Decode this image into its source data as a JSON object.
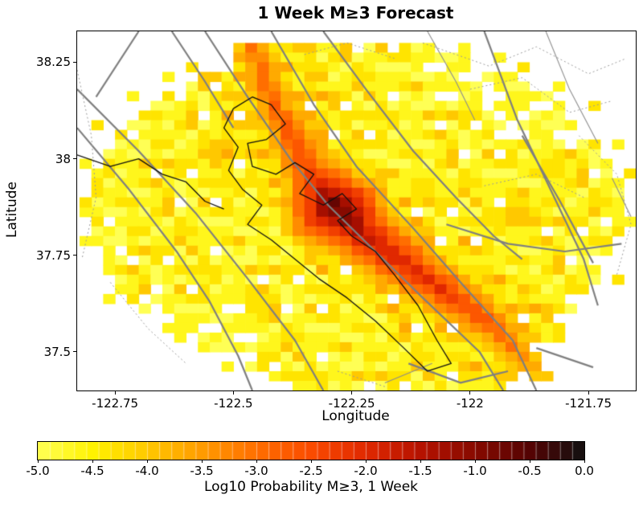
{
  "title": "1 Week M≥3 Forecast",
  "axes": {
    "xlabel": "Longitude",
    "ylabel": "Latitude",
    "x_ticks": [
      "-122.75",
      "-122.5",
      "-122.25",
      "-122",
      "-121.75"
    ],
    "x_tick_values": [
      -122.75,
      -122.5,
      -122.25,
      -122,
      -121.75
    ],
    "y_ticks": [
      "38.25",
      "38",
      "37.75",
      "37.5"
    ],
    "y_tick_values": [
      38.25,
      38,
      37.75,
      37.5
    ],
    "xlim": [
      -122.83,
      -121.65
    ],
    "ylim": [
      37.4,
      38.33
    ]
  },
  "colorbar": {
    "label": "Log10 Probability M≥3, 1 Week",
    "ticks": [
      "-5.0",
      "-4.5",
      "-4.0",
      "-3.5",
      "-3.0",
      "-2.5",
      "-2.0",
      "-1.5",
      "-1.0",
      "-0.5",
      "0.0"
    ],
    "tick_values": [
      -5,
      -4.5,
      -4,
      -3.5,
      -3,
      -2.5,
      -2,
      -1.5,
      -1,
      -0.5,
      0
    ],
    "range": [
      -5,
      0
    ],
    "segments": 45
  },
  "colors": {
    "background": "#ffffff",
    "axis": "#000000",
    "fault_major": "#7f7f7f",
    "fault_minor": "#8c8c8c",
    "fault_dotted": "#9a9a9a",
    "coast": "#101010"
  },
  "chart_data": {
    "type": "heatmap",
    "title": "1 Week M≥3 Forecast",
    "value_label": "Log10 Probability M≥3, 1 Week",
    "value_range": [
      -5,
      0
    ],
    "colormap_stops": [
      [
        -5.0,
        "#FFFF55"
      ],
      [
        -4.5,
        "#FFF200"
      ],
      [
        -4.0,
        "#FFC800"
      ],
      [
        -3.5,
        "#FF9B00"
      ],
      [
        -3.0,
        "#FF6E00"
      ],
      [
        -2.5,
        "#FA4B00"
      ],
      [
        -2.0,
        "#E02800"
      ],
      [
        -1.5,
        "#B51200"
      ],
      [
        -1.0,
        "#870A00"
      ],
      [
        -0.5,
        "#540303"
      ],
      [
        0.0,
        "#111111"
      ]
    ],
    "grid": {
      "lon0": -122.85,
      "dlon": 0.025,
      "ncols": 48,
      "lat0": 38.3,
      "dlat": 0.025,
      "nrows": 36
    },
    "mask_rows": [
      [
        16,
        30
      ],
      [
        14,
        33
      ],
      [
        13,
        35
      ],
      [
        11,
        37
      ],
      [
        9,
        38
      ],
      [
        8,
        40
      ],
      [
        7,
        41
      ],
      [
        6,
        41
      ],
      [
        5,
        42
      ],
      [
        4,
        43
      ],
      [
        4,
        44
      ],
      [
        3,
        44
      ],
      [
        3,
        45
      ],
      [
        2,
        45
      ],
      [
        2,
        46
      ],
      [
        2,
        46
      ],
      [
        1,
        46
      ],
      [
        1,
        46
      ],
      [
        2,
        46
      ],
      [
        2,
        46
      ],
      [
        2,
        45
      ],
      [
        3,
        45
      ],
      [
        3,
        45
      ],
      [
        3,
        44
      ],
      [
        4,
        44
      ],
      [
        4,
        43
      ],
      [
        5,
        42
      ],
      [
        6,
        42
      ],
      [
        7,
        41
      ],
      [
        8,
        41
      ],
      [
        9,
        40
      ],
      [
        11,
        39
      ],
      [
        13,
        38
      ],
      [
        15,
        38
      ],
      [
        17,
        37
      ],
      [
        20,
        36
      ]
    ],
    "background_texture": "120210312011.23101202111032011201.31021011201210.3110220103120112.02101301202103110201.2110212030112012",
    "texture_stride": [
      13,
      7
    ],
    "sparse_zones": [
      {
        "r0": 0,
        "r1": 9,
        "c0": 36,
        "c1": 47
      },
      {
        "r0": 27,
        "r1": 35,
        "c0": 0,
        "c1": 15
      },
      {
        "r0": 0,
        "r1": 6,
        "c0": 30,
        "c1": 36
      }
    ],
    "ridge": {
      "comment": "Hayward-fault probability ridge: [lon, lat, peak log10 prob]",
      "points": [
        [
          -122.47,
          38.32,
          -3.1
        ],
        [
          -122.41,
          38.13,
          -2.8
        ],
        [
          -122.34,
          37.97,
          -2.3
        ],
        [
          -122.285,
          37.875,
          -0.5
        ],
        [
          -122.22,
          37.8,
          -1.5
        ],
        [
          -122.13,
          37.72,
          -1.9
        ],
        [
          -122.04,
          37.645,
          -2.2
        ],
        [
          -121.96,
          37.575,
          -2.6
        ],
        [
          -121.9,
          37.5,
          -3.1
        ],
        [
          -121.85,
          37.44,
          -3.7
        ]
      ],
      "falloff_per_cell": 0.75,
      "outside_mask_threshold": -4.2
    },
    "bg_boost": {
      "radius": 7,
      "per_cell": 0.09,
      "cap": -3.4
    },
    "blobs": [
      [
        -121.9,
        37.86,
        -3.7,
        0.45
      ],
      [
        -122.52,
        38.02,
        -3.6,
        0.5
      ],
      [
        -122.45,
        37.62,
        -4.0,
        0.5
      ],
      [
        -121.82,
        37.97,
        -4.0,
        0.5
      ],
      [
        -122.66,
        37.95,
        -4.1,
        0.55
      ],
      [
        -122.1,
        37.92,
        -3.9,
        0.5
      ]
    ],
    "extra_cells": [
      [
        3,
        8,
        -4.67
      ],
      [
        5,
        5,
        -4.67
      ],
      [
        8,
        2,
        -4.33
      ],
      [
        12,
        1,
        -4.67
      ],
      [
        1,
        36,
        -4.67
      ],
      [
        2,
        38,
        -4.33
      ],
      [
        4,
        41,
        -4.67
      ],
      [
        6,
        44,
        -4.33
      ],
      [
        10,
        46,
        -4.67
      ],
      [
        13,
        47,
        -4.33
      ],
      [
        16,
        1,
        -4.33
      ],
      [
        20,
        1,
        -4.67
      ],
      [
        18,
        47,
        -4.67
      ],
      [
        24,
        46,
        -4.33
      ],
      [
        26,
        3,
        -4.67
      ],
      [
        30,
        41,
        -4.33
      ],
      [
        33,
        13,
        -4.67
      ],
      [
        34,
        33,
        -4.33
      ],
      [
        35,
        19,
        -4.67
      ],
      [
        0,
        33,
        -4.67
      ],
      [
        2,
        10,
        -4.33
      ]
    ],
    "value_ceiling": -0.4,
    "quantize_thirds": true,
    "map_lines": {
      "major": [
        [
          [
            -122.56,
            38.33
          ],
          [
            -122.47,
            38.16
          ],
          [
            -122.38,
            38.0
          ],
          [
            -122.3,
            37.88
          ],
          [
            -122.2,
            37.76
          ],
          [
            -122.1,
            37.64
          ],
          [
            -121.98,
            37.5
          ],
          [
            -121.93,
            37.4
          ]
        ],
        [
          [
            -122.42,
            38.33
          ],
          [
            -122.33,
            38.14
          ],
          [
            -122.24,
            37.98
          ],
          [
            -122.12,
            37.82
          ],
          [
            -122.02,
            37.68
          ],
          [
            -121.91,
            37.53
          ],
          [
            -121.86,
            37.4
          ]
        ],
        [
          [
            -122.31,
            38.33
          ],
          [
            -122.22,
            38.18
          ],
          [
            -122.12,
            38.02
          ],
          [
            -122.03,
            37.9
          ],
          [
            -121.95,
            37.8
          ],
          [
            -121.89,
            37.74
          ]
        ],
        [
          [
            -121.97,
            38.33
          ],
          [
            -121.9,
            38.1
          ],
          [
            -121.83,
            37.92
          ],
          [
            -121.76,
            37.74
          ],
          [
            -121.73,
            37.62
          ]
        ],
        [
          [
            -122.83,
            38.18
          ],
          [
            -122.7,
            38.02
          ],
          [
            -122.58,
            37.86
          ],
          [
            -122.47,
            37.69
          ],
          [
            -122.37,
            37.53
          ],
          [
            -122.31,
            37.4
          ]
        ],
        [
          [
            -122.83,
            38.08
          ],
          [
            -122.72,
            37.92
          ],
          [
            -122.62,
            37.76
          ],
          [
            -122.55,
            37.63
          ],
          [
            -122.49,
            37.49
          ],
          [
            -122.46,
            37.4
          ]
        ],
        [
          [
            -122.63,
            38.33
          ],
          [
            -122.56,
            38.2
          ],
          [
            -122.5,
            38.08
          ]
        ],
        [
          [
            -122.05,
            37.83
          ],
          [
            -121.92,
            37.78
          ],
          [
            -121.8,
            37.76
          ],
          [
            -121.68,
            37.78
          ]
        ],
        [
          [
            -121.89,
            38.06
          ],
          [
            -121.81,
            37.89
          ],
          [
            -121.74,
            37.73
          ]
        ],
        [
          [
            -122.13,
            37.47
          ],
          [
            -122.02,
            37.42
          ],
          [
            -121.92,
            37.45
          ]
        ],
        [
          [
            -121.86,
            37.51
          ],
          [
            -121.74,
            37.46
          ]
        ],
        [
          [
            -122.7,
            38.33
          ],
          [
            -122.79,
            38.16
          ]
        ]
      ],
      "minor": [
        [
          [
            -122.09,
            38.33
          ],
          [
            -122.03,
            38.2
          ],
          [
            -121.99,
            38.1
          ]
        ],
        [
          [
            -121.84,
            38.33
          ],
          [
            -121.79,
            38.18
          ],
          [
            -121.73,
            38.04
          ]
        ],
        [
          [
            -122.18,
            37.42
          ],
          [
            -122.08,
            37.47
          ]
        ],
        [
          [
            -121.7,
            37.95
          ],
          [
            -121.66,
            37.85
          ]
        ]
      ],
      "dotted": [
        [
          [
            -122.1,
            38.3
          ],
          [
            -121.96,
            38.24
          ],
          [
            -121.86,
            38.29
          ],
          [
            -121.75,
            38.22
          ],
          [
            -121.67,
            38.26
          ]
        ],
        [
          [
            -122.0,
            38.18
          ],
          [
            -121.89,
            38.21
          ],
          [
            -121.79,
            38.12
          ],
          [
            -121.7,
            38.15
          ]
        ],
        [
          [
            -121.77,
            38.06
          ],
          [
            -121.69,
            37.96
          ],
          [
            -121.66,
            37.83
          ],
          [
            -121.69,
            37.7
          ]
        ],
        [
          [
            -122.83,
            38.23
          ],
          [
            -122.8,
            38.06
          ],
          [
            -122.79,
            37.9
          ],
          [
            -122.82,
            37.74
          ]
        ],
        [
          [
            -122.76,
            37.68
          ],
          [
            -122.68,
            37.56
          ],
          [
            -122.6,
            37.47
          ]
        ],
        [
          [
            -122.35,
            38.27
          ],
          [
            -122.26,
            38.3
          ],
          [
            -122.16,
            38.26
          ]
        ],
        [
          [
            -121.97,
            37.93
          ],
          [
            -121.86,
            37.96
          ],
          [
            -121.76,
            37.9
          ]
        ],
        [
          [
            -122.28,
            37.45
          ],
          [
            -122.18,
            37.41
          ]
        ]
      ],
      "coast": [
        [
          [
            -122.5,
            38.13
          ],
          [
            -122.46,
            38.16
          ],
          [
            -122.42,
            38.14
          ],
          [
            -122.39,
            38.09
          ],
          [
            -122.43,
            38.05
          ],
          [
            -122.47,
            38.04
          ],
          [
            -122.46,
            37.98
          ],
          [
            -122.41,
            37.96
          ],
          [
            -122.37,
            37.99
          ],
          [
            -122.33,
            37.96
          ],
          [
            -122.36,
            37.91
          ],
          [
            -122.31,
            37.88
          ],
          [
            -122.27,
            37.91
          ],
          [
            -122.24,
            37.87
          ],
          [
            -122.28,
            37.84
          ],
          [
            -122.25,
            37.8
          ],
          [
            -122.2,
            37.76
          ],
          [
            -122.16,
            37.7
          ],
          [
            -122.11,
            37.62
          ],
          [
            -122.07,
            37.53
          ],
          [
            -122.04,
            37.47
          ],
          [
            -122.09,
            37.45
          ],
          [
            -122.14,
            37.51
          ],
          [
            -122.2,
            37.58
          ],
          [
            -122.26,
            37.64
          ],
          [
            -122.32,
            37.69
          ],
          [
            -122.37,
            37.74
          ],
          [
            -122.42,
            37.79
          ],
          [
            -122.47,
            37.83
          ],
          [
            -122.44,
            37.88
          ],
          [
            -122.48,
            37.92
          ],
          [
            -122.51,
            37.97
          ],
          [
            -122.49,
            38.03
          ],
          [
            -122.52,
            38.08
          ],
          [
            -122.5,
            38.13
          ]
        ],
        [
          [
            -122.83,
            38.01
          ],
          [
            -122.76,
            37.98
          ],
          [
            -122.7,
            38.0
          ],
          [
            -122.65,
            37.96
          ],
          [
            -122.6,
            37.94
          ],
          [
            -122.56,
            37.89
          ],
          [
            -122.52,
            37.87
          ]
        ]
      ]
    }
  }
}
